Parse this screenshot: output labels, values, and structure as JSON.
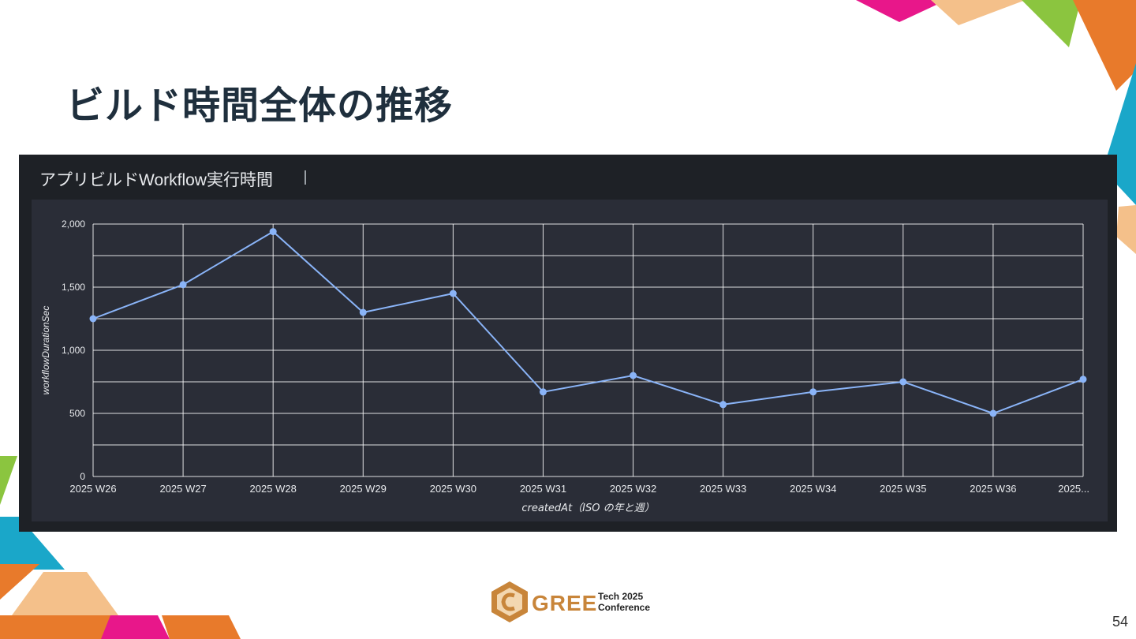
{
  "slide": {
    "title": "ビルド時間全体の推移",
    "page_number": "54"
  },
  "panel": {
    "title": "アプリビルドWorkflow実行時間"
  },
  "logo": {
    "word": "GREE",
    "line1": "Tech 2025",
    "line2": "Conference"
  },
  "colors": {
    "line": "#8ab4f8",
    "panel_bg": "#1e2126",
    "plot_bg": "#2a2d37",
    "grid": "#ffffff",
    "title_text": "#1f2f3d"
  },
  "chart_data": {
    "type": "line",
    "xlabel": "createdAt（ISO の年と週）",
    "ylabel": "workflowDurationSec",
    "ylim": [
      0,
      2000
    ],
    "yticks": [
      0,
      500,
      1000,
      1500,
      2000
    ],
    "ytick_labels": [
      "0",
      "500",
      "1,000",
      "1,500",
      "2,000"
    ],
    "categories": [
      "2025 W26",
      "2025 W27",
      "2025 W28",
      "2025 W29",
      "2025 W30",
      "2025 W31",
      "2025 W32",
      "2025 W33",
      "2025 W34",
      "2025 W35",
      "2025 W36",
      "2025..."
    ],
    "series": [
      {
        "values": [
          1250,
          1520,
          1940,
          1300,
          1450,
          670,
          800,
          570,
          670,
          750,
          500,
          770
        ]
      }
    ],
    "grid": true,
    "legend": "none"
  }
}
